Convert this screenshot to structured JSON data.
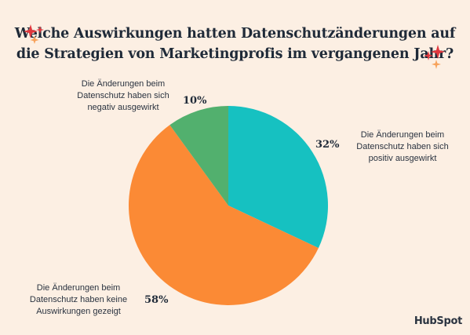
{
  "colors": {
    "background": "#fcefe3",
    "positive": "#16c1c1",
    "none": "#fb8a35",
    "negative": "#52b06e",
    "sparkle_red": "#e0383e",
    "sparkle_orange": "#f7a25b"
  },
  "icons": [
    "sparkle-icon",
    "hubspot-logo"
  ],
  "brand": "HubSpot",
  "chart_data": {
    "type": "pie",
    "title": "Welche Auswirkungen hatten Datenschutzänderungen auf die Strategien von Marketingprofis im vergangenen Jahr?",
    "title_lines": [
      "Welche Auswirkungen hatten Datenschutzänderungen auf",
      "die Strategien von Marketingprofis im vergangenen Jahr?"
    ],
    "start_angle_deg": 0,
    "direction": "clockwise",
    "slices": [
      {
        "key": "positive",
        "label": "Die Änderungen beim Datenschutz haben sich positiv ausgewirkt",
        "label_lines": [
          "Die Änderungen beim",
          "Datenschutz haben sich",
          "positiv ausgewirkt"
        ],
        "value": 32,
        "pct_label": "32%",
        "color": "#16c1c1"
      },
      {
        "key": "none",
        "label": "Die Änderungen beim Datenschutz haben keine Auswirkungen gezeigt",
        "label_lines": [
          "Die Änderungen beim",
          "Datenschutz haben keine",
          "Auswirkungen gezeigt"
        ],
        "value": 58,
        "pct_label": "58%",
        "color": "#fb8a35"
      },
      {
        "key": "negative",
        "label": "Die Änderungen beim Datenschutz haben sich negativ ausgewirkt",
        "label_lines": [
          "Die Änderungen beim",
          "Datenschutz haben sich",
          "negativ ausgewirkt"
        ],
        "value": 10,
        "pct_label": "10%",
        "color": "#52b06e"
      }
    ]
  }
}
